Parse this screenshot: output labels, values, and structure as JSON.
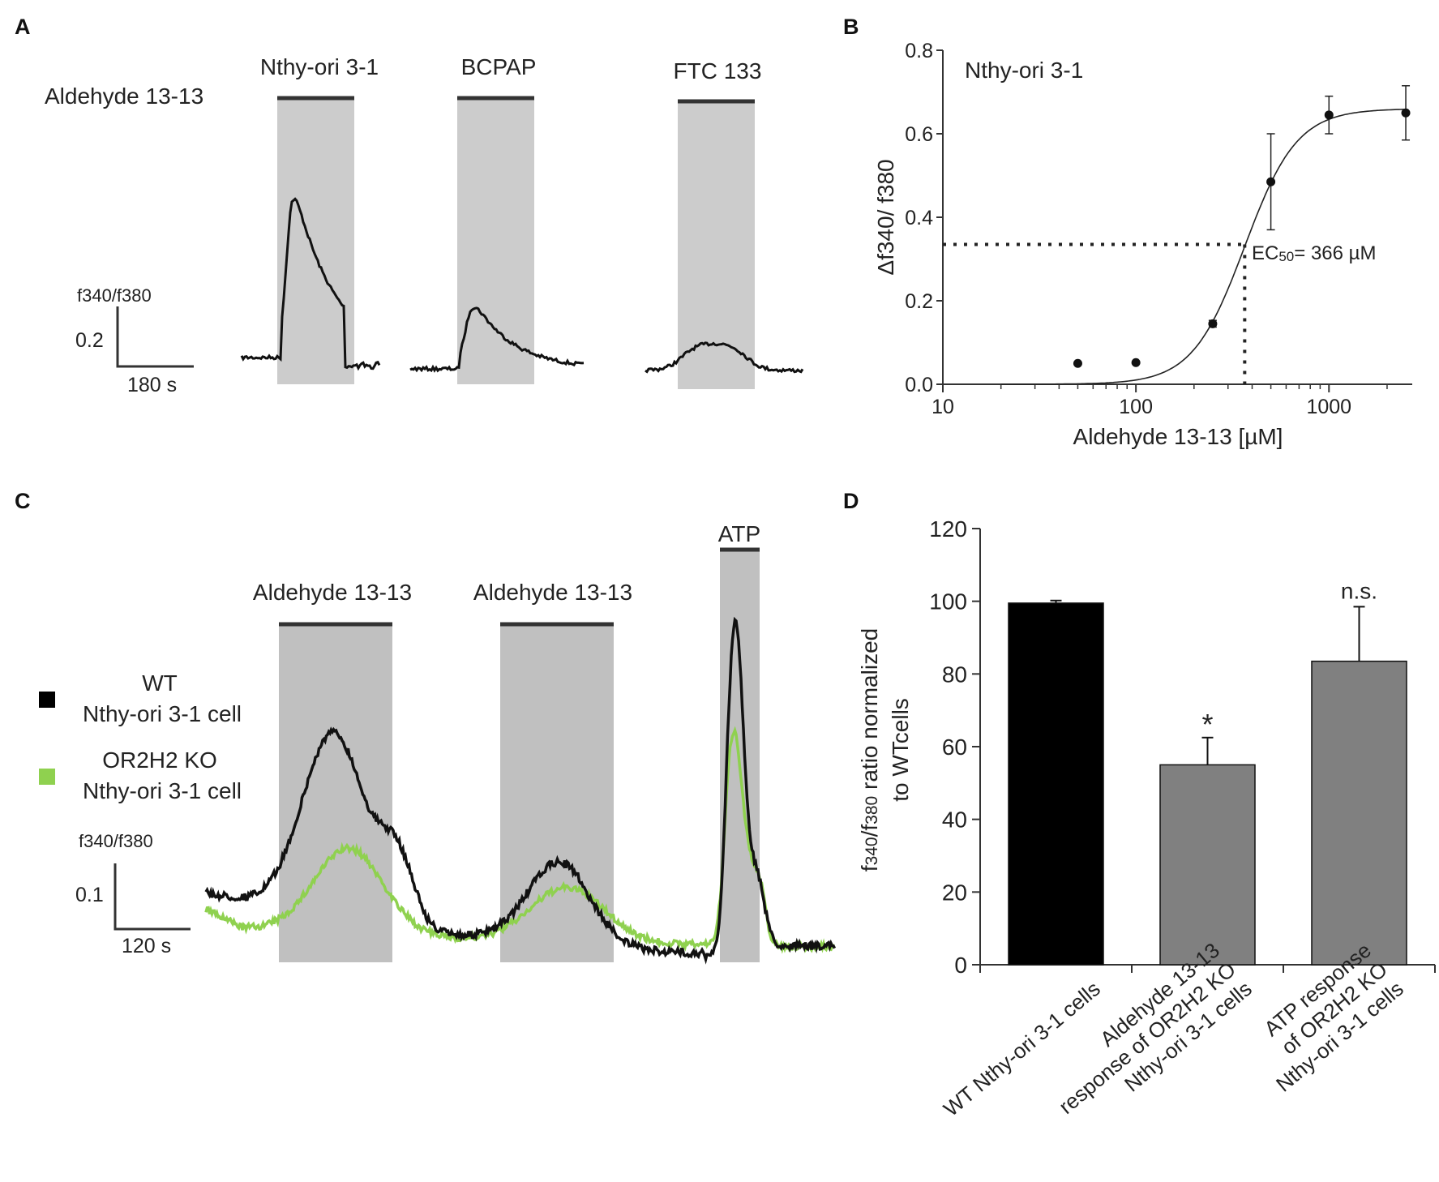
{
  "panels": {
    "A": {
      "letter": "A",
      "stimulus_label": "Aldehyde 13-13",
      "cell_lines": [
        "Nthy-ori 3-1",
        "BCPAP",
        "FTC 133"
      ],
      "scale_bar": {
        "y_label": "f340/f380",
        "y_value": "0.2",
        "x_value": "180 s"
      },
      "peak_ratios": [
        0.45,
        0.21,
        0.06
      ]
    },
    "C": {
      "letter": "C",
      "stimuli": [
        "Aldehyde 13-13",
        "Aldehyde 13-13",
        "ATP"
      ],
      "legend": [
        {
          "line1": "WT",
          "line2": "Nthy-ori 3-1 cell",
          "color": "#000000"
        },
        {
          "line1": "OR2H2 KO",
          "line2": "Nthy-ori 3-1 cell",
          "color": "#8fd14f"
        }
      ],
      "scale_bar": {
        "y_label": "f340/f380",
        "y_value": "0.1",
        "x_value": "120 s"
      }
    }
  },
  "chart_data": [
    {
      "panel": "B",
      "type": "scatter",
      "title": "Nthy-ori 3-1",
      "xlabel": "Aldehyde 13-13  [µM]",
      "ylabel": "Δf340/ f380",
      "xscale": "log",
      "xlim": [
        10,
        2700
      ],
      "ylim": [
        0,
        0.8
      ],
      "xticks": [
        "10",
        "100",
        "1000"
      ],
      "yticks": [
        "0.0",
        "0.2",
        "0.4",
        "0.6",
        "0.8"
      ],
      "x": [
        50,
        100,
        250,
        500,
        1000,
        2500
      ],
      "y": [
        0.05,
        0.052,
        0.145,
        0.485,
        0.645,
        0.65
      ],
      "err": [
        0,
        0,
        0.008,
        0.115,
        0.045,
        0.065
      ],
      "fit": {
        "bottom": 0.0,
        "top": 0.66,
        "ec50": 366,
        "hill": 3.2
      },
      "ec50_label": "EC50= 366 µM",
      "ec50_level": 0.335
    },
    {
      "panel": "D",
      "type": "bar",
      "categories": [
        "WT Nthy-ori 3-1 cells",
        "Aldehyde 13-13 response of OR2H2 KO Nthy-ori 3-1 cells",
        "ATP response of OR2H2 KO Nthy-ori 3-1 cells"
      ],
      "category_lines": [
        [
          "WT Nthy-ori 3-1 cells"
        ],
        [
          "Aldehyde 13-13",
          "response of OR2H2 KO",
          "Nthy-ori 3-1 cells"
        ],
        [
          "ATP response",
          "of OR2H2 KO",
          "Nthy-ori 3-1 cells"
        ]
      ],
      "values": [
        99.5,
        55,
        83.5
      ],
      "errors": [
        0.7,
        7.5,
        15
      ],
      "colors": [
        "#000000",
        "#808080",
        "#808080"
      ],
      "annotations": [
        "",
        "*",
        "n.s."
      ],
      "ylabel_line1": "f340/f380 ratio normalized",
      "ylabel_line2": "to WTcells",
      "ylim": [
        0,
        120
      ],
      "yticks": [
        "0",
        "20",
        "40",
        "60",
        "80",
        "100",
        "120"
      ]
    }
  ]
}
